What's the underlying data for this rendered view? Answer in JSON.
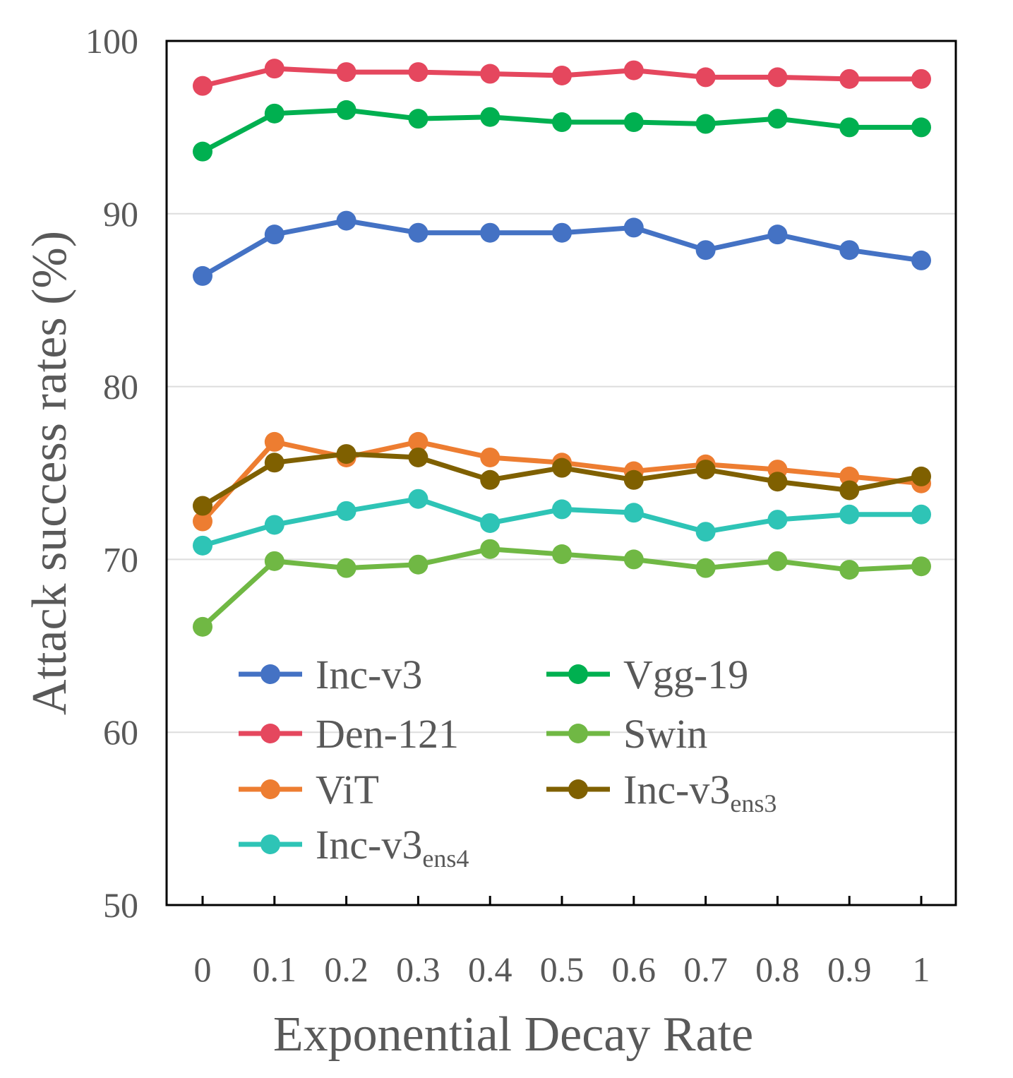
{
  "chart_data": {
    "type": "line",
    "title": "",
    "xlabel": "Exponential Decay Rate",
    "ylabel": "Attack success rates (%)",
    "categories": [
      "0",
      "0.1",
      "0.2",
      "0.3",
      "0.4",
      "0.5",
      "0.6",
      "0.7",
      "0.8",
      "0.9",
      "1"
    ],
    "ylim": [
      50,
      100
    ],
    "yticks": [
      "50",
      "60",
      "70",
      "80",
      "90",
      "100"
    ],
    "grid": true,
    "legend_position": "bottom-left inside",
    "series": [
      {
        "name": "Inc-v3",
        "subscript": "",
        "color": "#4472C4",
        "values": [
          86.4,
          88.8,
          89.6,
          88.9,
          88.9,
          88.9,
          89.2,
          87.9,
          88.8,
          87.9,
          87.3
        ]
      },
      {
        "name": "Vgg-19",
        "subscript": "",
        "color": "#00B050",
        "values": [
          93.6,
          95.8,
          96.0,
          95.5,
          95.6,
          95.3,
          95.3,
          95.2,
          95.5,
          95.0,
          95.0
        ]
      },
      {
        "name": "Den-121",
        "subscript": "",
        "color": "#E5475E",
        "values": [
          97.4,
          98.4,
          98.2,
          98.2,
          98.1,
          98.0,
          98.3,
          97.9,
          97.9,
          97.8,
          97.8
        ]
      },
      {
        "name": "Swin",
        "subscript": "",
        "color": "#70B844",
        "values": [
          66.1,
          69.9,
          69.5,
          69.7,
          70.6,
          70.3,
          70.0,
          69.5,
          69.9,
          69.4,
          69.6
        ]
      },
      {
        "name": "ViT",
        "subscript": "",
        "color": "#ED7D31",
        "values": [
          72.2,
          76.8,
          75.9,
          76.8,
          75.9,
          75.6,
          75.1,
          75.5,
          75.2,
          74.8,
          74.4
        ]
      },
      {
        "name": "Inc-v3",
        "subscript": "ens3",
        "color": "#7F6000",
        "values": [
          73.1,
          75.6,
          76.1,
          75.9,
          74.6,
          75.3,
          74.6,
          75.2,
          74.5,
          74.0,
          74.8
        ]
      },
      {
        "name": "Inc-v3",
        "subscript": "ens4",
        "color": "#2EC4B6",
        "values": [
          70.8,
          72.0,
          72.8,
          73.5,
          72.1,
          72.9,
          72.7,
          71.6,
          72.3,
          72.6,
          72.6
        ]
      }
    ]
  }
}
